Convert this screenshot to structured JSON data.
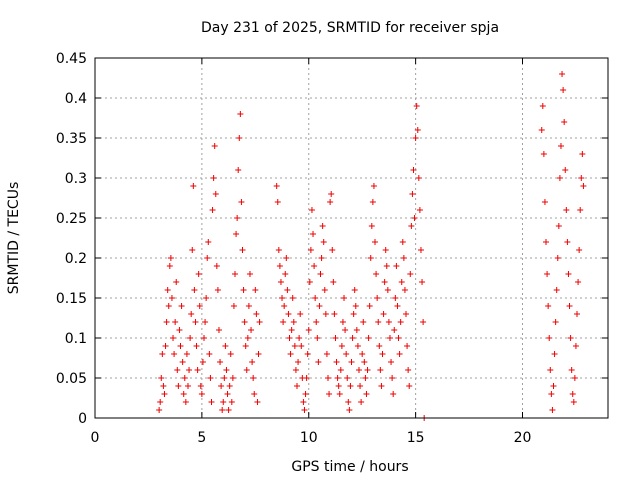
{
  "chart_data": {
    "type": "scatter",
    "title": "Day 231 of 2025, SRMTID for receiver spja",
    "xlabel": "GPS time / hours",
    "ylabel": "SRMTID / TECUs",
    "xlim": [
      0,
      24
    ],
    "ylim": [
      0,
      0.45
    ],
    "xticks": [
      0,
      5,
      10,
      15,
      20
    ],
    "yticks": [
      0,
      0.05,
      0.1,
      0.15,
      0.2,
      0.25,
      0.3,
      0.35,
      0.4,
      0.45
    ],
    "xtick_labels": [
      "0",
      "5",
      "10",
      "15",
      "20"
    ],
    "ytick_labels": [
      "0",
      "0.05",
      "0.1",
      "0.15",
      "0.2",
      "0.25",
      "0.3",
      "0.35",
      "0.4",
      "0.45"
    ],
    "grid": true,
    "marker": "+",
    "series": [
      {
        "name": "SRMTID",
        "color": "#ee0000",
        "points": [
          [
            3.0,
            0.01
          ],
          [
            3.05,
            0.02
          ],
          [
            3.1,
            0.05
          ],
          [
            3.15,
            0.08
          ],
          [
            3.2,
            0.04
          ],
          [
            3.25,
            0.03
          ],
          [
            3.3,
            0.09
          ],
          [
            3.35,
            0.12
          ],
          [
            3.4,
            0.16
          ],
          [
            3.45,
            0.14
          ],
          [
            3.5,
            0.19
          ],
          [
            3.55,
            0.2
          ],
          [
            3.6,
            0.15
          ],
          [
            3.65,
            0.1
          ],
          [
            3.7,
            0.08
          ],
          [
            3.75,
            0.12
          ],
          [
            3.8,
            0.17
          ],
          [
            3.85,
            0.06
          ],
          [
            3.9,
            0.04
          ],
          [
            3.95,
            0.11
          ],
          [
            4.0,
            0.09
          ],
          [
            4.05,
            0.14
          ],
          [
            4.1,
            0.07
          ],
          [
            4.15,
            0.03
          ],
          [
            4.2,
            0.05
          ],
          [
            4.25,
            0.02
          ],
          [
            4.3,
            0.08
          ],
          [
            4.35,
            0.04
          ],
          [
            4.4,
            0.06
          ],
          [
            4.45,
            0.1
          ],
          [
            4.5,
            0.13
          ],
          [
            4.55,
            0.21
          ],
          [
            4.6,
            0.29
          ],
          [
            4.65,
            0.16
          ],
          [
            4.7,
            0.12
          ],
          [
            4.75,
            0.09
          ],
          [
            4.8,
            0.06
          ],
          [
            4.85,
            0.18
          ],
          [
            4.9,
            0.14
          ],
          [
            4.95,
            0.04
          ],
          [
            5.0,
            0.03
          ],
          [
            5.05,
            0.07
          ],
          [
            5.1,
            0.1
          ],
          [
            5.15,
            0.12
          ],
          [
            5.2,
            0.15
          ],
          [
            5.25,
            0.2
          ],
          [
            5.3,
            0.22
          ],
          [
            5.35,
            0.08
          ],
          [
            5.4,
            0.05
          ],
          [
            5.45,
            0.02
          ],
          [
            5.5,
            0.26
          ],
          [
            5.55,
            0.3
          ],
          [
            5.6,
            0.34
          ],
          [
            5.65,
            0.28
          ],
          [
            5.7,
            0.19
          ],
          [
            5.75,
            0.16
          ],
          [
            5.8,
            0.11
          ],
          [
            5.85,
            0.07
          ],
          [
            5.9,
            0.04
          ],
          [
            5.95,
            0.01
          ],
          [
            6.0,
            0.02
          ],
          [
            6.05,
            0.05
          ],
          [
            6.1,
            0.09
          ],
          [
            6.15,
            0.06
          ],
          [
            6.2,
            0.03
          ],
          [
            6.25,
            0.01
          ],
          [
            6.3,
            0.04
          ],
          [
            6.35,
            0.08
          ],
          [
            6.4,
            0.02
          ],
          [
            6.45,
            0.05
          ],
          [
            6.5,
            0.14
          ],
          [
            6.55,
            0.18
          ],
          [
            6.6,
            0.23
          ],
          [
            6.65,
            0.25
          ],
          [
            6.7,
            0.31
          ],
          [
            6.75,
            0.35
          ],
          [
            6.8,
            0.38
          ],
          [
            6.85,
            0.27
          ],
          [
            6.9,
            0.21
          ],
          [
            6.95,
            0.16
          ],
          [
            7.0,
            0.12
          ],
          [
            7.05,
            0.09
          ],
          [
            7.1,
            0.06
          ],
          [
            7.15,
            0.1
          ],
          [
            7.2,
            0.14
          ],
          [
            7.25,
            0.18
          ],
          [
            7.3,
            0.11
          ],
          [
            7.35,
            0.07
          ],
          [
            7.4,
            0.05
          ],
          [
            7.45,
            0.03
          ],
          [
            7.5,
            0.16
          ],
          [
            7.55,
            0.13
          ],
          [
            7.6,
            0.02
          ],
          [
            7.65,
            0.08
          ],
          [
            7.7,
            0.12
          ],
          [
            8.5,
            0.29
          ],
          [
            8.55,
            0.27
          ],
          [
            8.6,
            0.21
          ],
          [
            8.65,
            0.19
          ],
          [
            8.7,
            0.17
          ],
          [
            8.75,
            0.15
          ],
          [
            8.8,
            0.12
          ],
          [
            8.85,
            0.14
          ],
          [
            8.9,
            0.18
          ],
          [
            8.95,
            0.2
          ],
          [
            9.0,
            0.16
          ],
          [
            9.05,
            0.13
          ],
          [
            9.1,
            0.1
          ],
          [
            9.15,
            0.08
          ],
          [
            9.2,
            0.11
          ],
          [
            9.25,
            0.15
          ],
          [
            9.3,
            0.12
          ],
          [
            9.35,
            0.09
          ],
          [
            9.4,
            0.06
          ],
          [
            9.45,
            0.04
          ],
          [
            9.5,
            0.07
          ],
          [
            9.55,
            0.1
          ],
          [
            9.6,
            0.13
          ],
          [
            9.65,
            0.09
          ],
          [
            9.7,
            0.05
          ],
          [
            9.75,
            0.02
          ],
          [
            9.8,
            0.01
          ],
          [
            9.85,
            0.03
          ],
          [
            9.9,
            0.05
          ],
          [
            9.95,
            0.08
          ],
          [
            10.0,
            0.11
          ],
          [
            10.05,
            0.17
          ],
          [
            10.1,
            0.21
          ],
          [
            10.15,
            0.26
          ],
          [
            10.2,
            0.23
          ],
          [
            10.25,
            0.19
          ],
          [
            10.3,
            0.15
          ],
          [
            10.35,
            0.12
          ],
          [
            10.4,
            0.1
          ],
          [
            10.45,
            0.07
          ],
          [
            10.5,
            0.14
          ],
          [
            10.55,
            0.18
          ],
          [
            10.6,
            0.2
          ],
          [
            10.65,
            0.24
          ],
          [
            10.7,
            0.22
          ],
          [
            10.75,
            0.16
          ],
          [
            10.8,
            0.13
          ],
          [
            10.85,
            0.08
          ],
          [
            10.9,
            0.05
          ],
          [
            10.95,
            0.03
          ],
          [
            11.0,
            0.27
          ],
          [
            11.05,
            0.28
          ],
          [
            11.1,
            0.21
          ],
          [
            11.15,
            0.17
          ],
          [
            11.2,
            0.13
          ],
          [
            11.25,
            0.1
          ],
          [
            11.3,
            0.07
          ],
          [
            11.35,
            0.05
          ],
          [
            11.4,
            0.04
          ],
          [
            11.45,
            0.03
          ],
          [
            11.5,
            0.06
          ],
          [
            11.55,
            0.09
          ],
          [
            11.6,
            0.12
          ],
          [
            11.65,
            0.15
          ],
          [
            11.7,
            0.11
          ],
          [
            11.75,
            0.08
          ],
          [
            11.8,
            0.05
          ],
          [
            11.85,
            0.02
          ],
          [
            11.9,
            0.01
          ],
          [
            11.95,
            0.04
          ],
          [
            12.0,
            0.07
          ],
          [
            12.05,
            0.1
          ],
          [
            12.1,
            0.13
          ],
          [
            12.15,
            0.16
          ],
          [
            12.2,
            0.14
          ],
          [
            12.25,
            0.11
          ],
          [
            12.3,
            0.09
          ],
          [
            12.35,
            0.06
          ],
          [
            12.4,
            0.04
          ],
          [
            12.45,
            0.02
          ],
          [
            12.5,
            0.08
          ],
          [
            12.55,
            0.12
          ],
          [
            12.6,
            0.07
          ],
          [
            12.65,
            0.05
          ],
          [
            12.7,
            0.03
          ],
          [
            12.75,
            0.06
          ],
          [
            12.8,
            0.1
          ],
          [
            12.85,
            0.14
          ],
          [
            12.9,
            0.2
          ],
          [
            12.95,
            0.24
          ],
          [
            13.0,
            0.27
          ],
          [
            13.05,
            0.29
          ],
          [
            13.1,
            0.22
          ],
          [
            13.15,
            0.18
          ],
          [
            13.2,
            0.15
          ],
          [
            13.25,
            0.12
          ],
          [
            13.3,
            0.09
          ],
          [
            13.35,
            0.06
          ],
          [
            13.4,
            0.04
          ],
          [
            13.45,
            0.08
          ],
          [
            13.5,
            0.13
          ],
          [
            13.55,
            0.17
          ],
          [
            13.6,
            0.21
          ],
          [
            13.65,
            0.19
          ],
          [
            13.7,
            0.16
          ],
          [
            13.75,
            0.12
          ],
          [
            13.8,
            0.1
          ],
          [
            13.85,
            0.07
          ],
          [
            13.9,
            0.05
          ],
          [
            13.95,
            0.03
          ],
          [
            14.0,
            0.11
          ],
          [
            14.05,
            0.15
          ],
          [
            14.1,
            0.19
          ],
          [
            14.15,
            0.14
          ],
          [
            14.2,
            0.1
          ],
          [
            14.25,
            0.08
          ],
          [
            14.3,
            0.12
          ],
          [
            14.35,
            0.17
          ],
          [
            14.4,
            0.22
          ],
          [
            14.45,
            0.2
          ],
          [
            14.5,
            0.16
          ],
          [
            14.55,
            0.13
          ],
          [
            14.6,
            0.09
          ],
          [
            14.65,
            0.06
          ],
          [
            14.7,
            0.04
          ],
          [
            14.75,
            0.18
          ],
          [
            14.8,
            0.24
          ],
          [
            14.85,
            0.28
          ],
          [
            14.9,
            0.31
          ],
          [
            14.95,
            0.25
          ],
          [
            15.0,
            0.35
          ],
          [
            15.05,
            0.39
          ],
          [
            15.1,
            0.36
          ],
          [
            15.15,
            0.3
          ],
          [
            15.2,
            0.26
          ],
          [
            15.25,
            0.21
          ],
          [
            15.3,
            0.17
          ],
          [
            15.35,
            0.12
          ],
          [
            15.4,
            0.0
          ],
          [
            20.9,
            0.36
          ],
          [
            20.95,
            0.39
          ],
          [
            21.0,
            0.33
          ],
          [
            21.05,
            0.27
          ],
          [
            21.1,
            0.22
          ],
          [
            21.15,
            0.18
          ],
          [
            21.2,
            0.14
          ],
          [
            21.25,
            0.1
          ],
          [
            21.3,
            0.06
          ],
          [
            21.35,
            0.03
          ],
          [
            21.4,
            0.01
          ],
          [
            21.45,
            0.04
          ],
          [
            21.5,
            0.08
          ],
          [
            21.55,
            0.12
          ],
          [
            21.6,
            0.16
          ],
          [
            21.65,
            0.2
          ],
          [
            21.7,
            0.24
          ],
          [
            21.75,
            0.3
          ],
          [
            21.8,
            0.34
          ],
          [
            21.85,
            0.43
          ],
          [
            21.9,
            0.41
          ],
          [
            21.95,
            0.37
          ],
          [
            22.0,
            0.31
          ],
          [
            22.05,
            0.26
          ],
          [
            22.1,
            0.22
          ],
          [
            22.15,
            0.18
          ],
          [
            22.2,
            0.14
          ],
          [
            22.25,
            0.1
          ],
          [
            22.3,
            0.06
          ],
          [
            22.35,
            0.03
          ],
          [
            22.4,
            0.02
          ],
          [
            22.45,
            0.05
          ],
          [
            22.5,
            0.09
          ],
          [
            22.55,
            0.13
          ],
          [
            22.6,
            0.17
          ],
          [
            22.65,
            0.21
          ],
          [
            22.7,
            0.26
          ],
          [
            22.75,
            0.3
          ],
          [
            22.8,
            0.33
          ],
          [
            22.85,
            0.29
          ]
        ]
      }
    ]
  }
}
